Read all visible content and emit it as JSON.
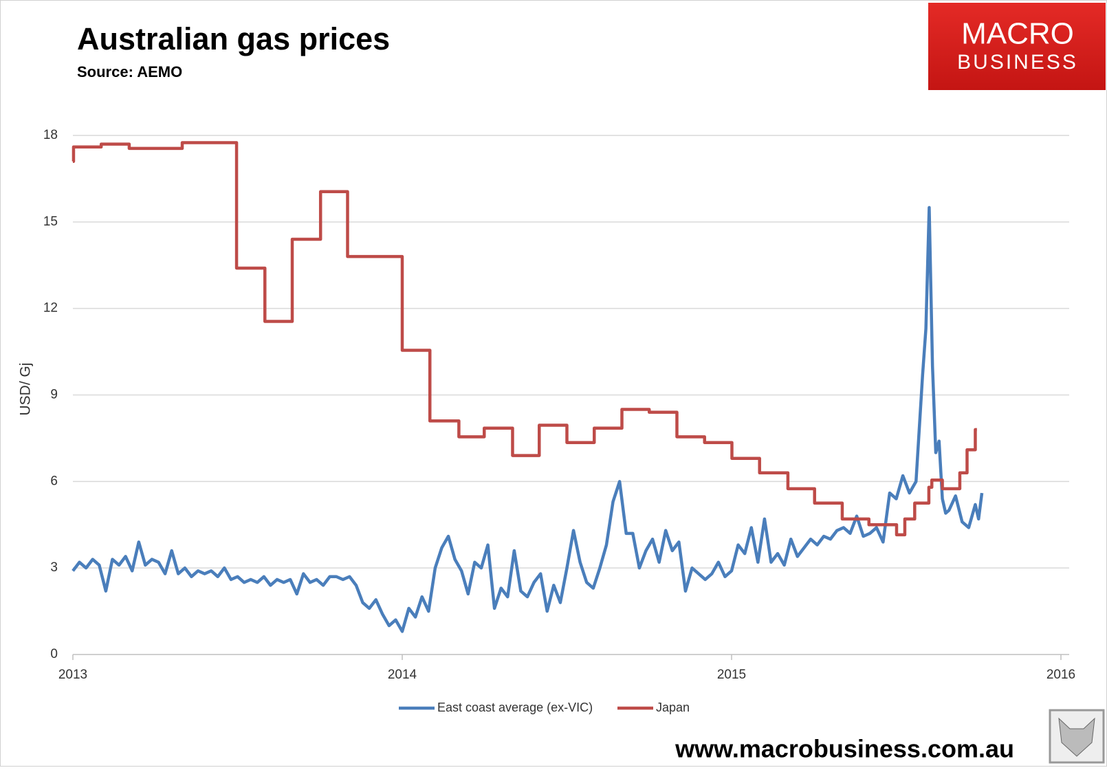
{
  "brand": {
    "logo": [
      "MACRO",
      "BUSINESS"
    ],
    "url": "www.macrobusiness.com.au"
  },
  "chart_data": {
    "type": "line",
    "title": "Australian gas prices",
    "subtitle": "Source: AEMO",
    "y_label": "USD/ Gj",
    "xlim": [
      2013,
      2016
    ],
    "xticks": [
      2013,
      2014,
      2015,
      2016
    ],
    "ylim": [
      0,
      18
    ],
    "yticks": [
      0,
      3,
      6,
      9,
      12,
      15,
      18
    ],
    "grid": true,
    "legend": "bottom",
    "series": [
      {
        "name": "East coast average (ex-VIC)",
        "color": "#4a7ebb",
        "x": [
          2013.0,
          2013.02,
          2013.04,
          2013.06,
          2013.08,
          2013.1,
          2013.12,
          2013.14,
          2013.16,
          2013.18,
          2013.2,
          2013.22,
          2013.24,
          2013.26,
          2013.28,
          2013.3,
          2013.32,
          2013.34,
          2013.36,
          2013.38,
          2013.4,
          2013.42,
          2013.44,
          2013.46,
          2013.48,
          2013.5,
          2013.52,
          2013.54,
          2013.56,
          2013.58,
          2013.6,
          2013.62,
          2013.64,
          2013.66,
          2013.68,
          2013.7,
          2013.72,
          2013.74,
          2013.76,
          2013.78,
          2013.8,
          2013.82,
          2013.84,
          2013.86,
          2013.88,
          2013.9,
          2013.92,
          2013.94,
          2013.96,
          2013.98,
          2014.0,
          2014.02,
          2014.04,
          2014.06,
          2014.08,
          2014.1,
          2014.12,
          2014.14,
          2014.16,
          2014.18,
          2014.2,
          2014.22,
          2014.24,
          2014.26,
          2014.28,
          2014.3,
          2014.32,
          2014.34,
          2014.36,
          2014.38,
          2014.4,
          2014.42,
          2014.44,
          2014.46,
          2014.48,
          2014.5,
          2014.52,
          2014.54,
          2014.56,
          2014.58,
          2014.6,
          2014.62,
          2014.64,
          2014.66,
          2014.68,
          2014.7,
          2014.72,
          2014.74,
          2014.76,
          2014.78,
          2014.8,
          2014.82,
          2014.84,
          2014.86,
          2014.88,
          2014.9,
          2014.92,
          2014.94,
          2014.96,
          2014.98,
          2015.0,
          2015.02,
          2015.04,
          2015.06,
          2015.08,
          2015.1,
          2015.12,
          2015.14,
          2015.16,
          2015.18,
          2015.2,
          2015.22,
          2015.24,
          2015.26,
          2015.28,
          2015.3,
          2015.32,
          2015.34,
          2015.36,
          2015.38,
          2015.4,
          2015.42,
          2015.44,
          2015.46,
          2015.48,
          2015.5,
          2015.52,
          2015.54,
          2015.56,
          2015.58,
          2015.59,
          2015.6,
          2015.61,
          2015.62,
          2015.63,
          2015.64,
          2015.65,
          2015.66,
          2015.68,
          2015.7,
          2015.72,
          2015.74,
          2015.75,
          2015.76
        ],
        "values": [
          2.9,
          3.2,
          3.0,
          3.3,
          3.1,
          2.2,
          3.3,
          3.1,
          3.4,
          2.9,
          3.9,
          3.1,
          3.3,
          3.2,
          2.8,
          3.6,
          2.8,
          3.0,
          2.7,
          2.9,
          2.8,
          2.9,
          2.7,
          3.0,
          2.6,
          2.7,
          2.5,
          2.6,
          2.5,
          2.7,
          2.4,
          2.6,
          2.5,
          2.6,
          2.1,
          2.8,
          2.5,
          2.6,
          2.4,
          2.7,
          2.7,
          2.6,
          2.7,
          2.4,
          1.8,
          1.6,
          1.9,
          1.4,
          1.0,
          1.2,
          0.8,
          1.6,
          1.3,
          2.0,
          1.5,
          3.0,
          3.7,
          4.1,
          3.3,
          2.9,
          2.1,
          3.2,
          3.0,
          3.8,
          1.6,
          2.3,
          2.0,
          3.6,
          2.2,
          2.0,
          2.5,
          2.8,
          1.5,
          2.4,
          1.8,
          3.0,
          4.3,
          3.2,
          2.5,
          2.3,
          3.0,
          3.8,
          5.3,
          6.0,
          4.2,
          4.2,
          3.0,
          3.6,
          4.0,
          3.2,
          4.3,
          3.6,
          3.9,
          2.2,
          3.0,
          2.8,
          2.6,
          2.8,
          3.2,
          2.7,
          2.9,
          3.8,
          3.5,
          4.4,
          3.2,
          4.7,
          3.2,
          3.5,
          3.1,
          4.0,
          3.4,
          3.7,
          4.0,
          3.8,
          4.1,
          4.0,
          4.3,
          4.4,
          4.2,
          4.8,
          4.1,
          4.2,
          4.4,
          3.9,
          5.6,
          5.4,
          6.2,
          5.6,
          6.0,
          9.7,
          11.3,
          15.5,
          10.0,
          7.0,
          7.4,
          5.4,
          4.9,
          5.0,
          5.5,
          4.6,
          4.4,
          5.2,
          4.7,
          5.6
        ]
      },
      {
        "name": "Japan",
        "color": "#be4b48",
        "step": true,
        "x": [
          2013.0,
          2013.002,
          2013.086,
          2013.171,
          2013.332,
          2013.497,
          2013.583,
          2013.666,
          2013.752,
          2013.834,
          2014.0,
          2014.084,
          2014.172,
          2014.249,
          2014.335,
          2014.416,
          2014.5,
          2014.583,
          2014.667,
          2014.75,
          2014.834,
          2014.918,
          2015.001,
          2015.085,
          2015.171,
          2015.252,
          2015.336,
          2015.417,
          2015.501,
          2015.526,
          2015.556,
          2015.599,
          2015.608,
          2015.64,
          2015.693,
          2015.715,
          2015.74,
          2015.745
        ],
        "values": [
          17.1,
          17.6,
          17.7,
          17.55,
          17.75,
          13.4,
          11.55,
          14.4,
          16.05,
          13.8,
          10.55,
          8.1,
          7.55,
          7.85,
          6.9,
          7.95,
          7.35,
          7.85,
          8.5,
          8.4,
          7.55,
          7.35,
          6.8,
          6.3,
          5.75,
          5.25,
          4.7,
          4.5,
          4.15,
          4.7,
          5.25,
          5.8,
          6.05,
          5.75,
          6.3,
          7.1,
          7.8,
          7.8
        ]
      }
    ]
  }
}
